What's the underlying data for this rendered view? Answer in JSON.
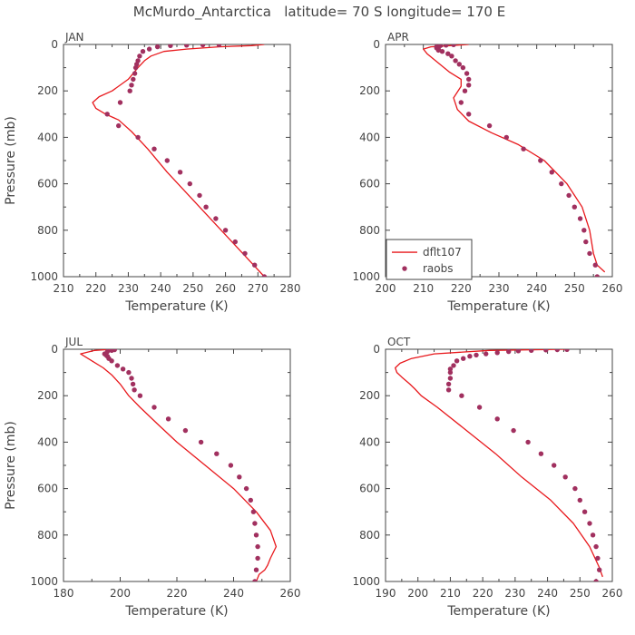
{
  "figure_title": "McMurdo_Antarctica   latitude= 70 S longitude= 170 E",
  "colors": {
    "model": "#e8181c",
    "obs": "#a1305f",
    "axis": "#444444"
  },
  "chart_data": [
    {
      "type": "line",
      "panel_label": "JAN",
      "xlabel": "Temperature (K)",
      "ylabel": "Pressure (mb)",
      "xlim": [
        210,
        280
      ],
      "xticks": [
        210,
        220,
        230,
        240,
        250,
        260,
        270,
        280
      ],
      "ylim": [
        1000,
        0
      ],
      "yticks": [
        0,
        200,
        400,
        600,
        800,
        1000
      ],
      "series": [
        {
          "name": "dflt107",
          "style": "line",
          "t": [
            272,
            262,
            252,
            242,
            236,
            231,
            227,
            223,
            220,
            219,
            221,
            225,
            230,
            233,
            235,
            237,
            241,
            248,
            258,
            268,
            272
          ],
          "p": [
            1000,
            850,
            700,
            550,
            450,
            375,
            325,
            300,
            275,
            250,
            225,
            200,
            150,
            100,
            70,
            50,
            30,
            20,
            10,
            5,
            0
          ]
        },
        {
          "name": "raobs",
          "style": "points",
          "t": [
            272,
            269,
            266,
            263,
            260,
            257,
            254,
            252,
            249,
            246,
            242,
            238,
            233,
            227,
            223.5,
            227.5,
            230.5,
            231,
            231.5,
            232,
            232.3,
            232.6,
            233,
            233.5,
            234.5,
            236.5,
            239,
            243,
            248,
            253,
            258
          ],
          "p": [
            1000,
            950,
            900,
            850,
            800,
            750,
            700,
            650,
            600,
            550,
            500,
            450,
            400,
            350,
            300,
            250,
            200,
            175,
            150,
            125,
            100,
            85,
            70,
            50,
            30,
            20,
            10,
            5,
            3,
            2,
            1
          ]
        }
      ]
    },
    {
      "type": "line",
      "panel_label": "APR",
      "xlabel": "Temperature (K)",
      "ylabel": "",
      "xlim": [
        200,
        260
      ],
      "xticks": [
        200,
        210,
        220,
        230,
        240,
        250,
        260
      ],
      "ylim": [
        1000,
        0
      ],
      "yticks": [
        0,
        200,
        400,
        600,
        800,
        1000
      ],
      "legend": {
        "position": "bottom-left",
        "entries": [
          "dflt107",
          "raobs"
        ]
      },
      "series": [
        {
          "name": "dflt107",
          "style": "line",
          "t": [
            258,
            256,
            255,
            254,
            252,
            248,
            242,
            235,
            228,
            222,
            219,
            218,
            220,
            220,
            217,
            214,
            211,
            210,
            212,
            217,
            222
          ],
          "p": [
            980,
            950,
            900,
            800,
            700,
            600,
            500,
            430,
            380,
            330,
            280,
            230,
            180,
            150,
            120,
            80,
            40,
            20,
            10,
            5,
            0
          ]
        },
        {
          "name": "raobs",
          "style": "points",
          "t": [
            256,
            255.5,
            254,
            253,
            252.5,
            251.5,
            250,
            248.5,
            246.5,
            244,
            241,
            236.5,
            232,
            227.5,
            222,
            220,
            221,
            222,
            222,
            221.5,
            220.5,
            219.5,
            218.5,
            217.5,
            216.5,
            215,
            214,
            214,
            213.5,
            213.5,
            214.5,
            216,
            218
          ],
          "p": [
            1000,
            950,
            900,
            850,
            800,
            750,
            700,
            650,
            600,
            550,
            500,
            450,
            400,
            350,
            300,
            250,
            200,
            175,
            150,
            125,
            100,
            85,
            70,
            50,
            40,
            30,
            25,
            20,
            15,
            10,
            5,
            3,
            1
          ]
        }
      ]
    },
    {
      "type": "line",
      "panel_label": "JUL",
      "xlabel": "Temperature (K)",
      "ylabel": "Pressure (mb)",
      "xlim": [
        180,
        260
      ],
      "xticks": [
        180,
        200,
        220,
        240,
        260
      ],
      "ylim": [
        1000,
        0
      ],
      "yticks": [
        0,
        200,
        400,
        600,
        800,
        1000
      ],
      "series": [
        {
          "name": "dflt107",
          "style": "line",
          "t": [
            248,
            249,
            251,
            252,
            253,
            255,
            253,
            248,
            240,
            230,
            220,
            213,
            207,
            203,
            200,
            197,
            194,
            190,
            186,
            191,
            197
          ],
          "p": [
            1000,
            970,
            950,
            930,
            900,
            850,
            780,
            700,
            600,
            500,
            400,
            320,
            250,
            200,
            150,
            110,
            80,
            50,
            20,
            5,
            0
          ]
        },
        {
          "name": "raobs",
          "style": "points",
          "t": [
            247.5,
            248,
            248.5,
            248.5,
            248,
            247.5,
            247,
            246,
            244.5,
            242,
            239,
            234,
            228.5,
            223,
            217,
            212,
            207,
            205,
            204.5,
            204,
            203,
            201,
            199,
            197,
            196,
            195.5,
            195,
            194.5,
            195.5,
            197,
            198
          ],
          "p": [
            1000,
            950,
            900,
            850,
            800,
            750,
            700,
            650,
            600,
            550,
            500,
            450,
            400,
            350,
            300,
            250,
            200,
            175,
            150,
            125,
            100,
            85,
            70,
            50,
            40,
            30,
            25,
            20,
            10,
            5,
            2
          ]
        }
      ]
    },
    {
      "type": "line",
      "panel_label": "OCT",
      "xlabel": "Temperature (K)",
      "ylabel": "",
      "xlim": [
        190,
        260
      ],
      "xticks": [
        190,
        200,
        210,
        220,
        230,
        240,
        250,
        260
      ],
      "ylim": [
        1000,
        0
      ],
      "yticks": [
        0,
        200,
        400,
        600,
        800,
        1000
      ],
      "series": [
        {
          "name": "dflt107",
          "style": "line",
          "t": [
            257,
            256.5,
            256,
            253,
            248,
            241,
            232,
            224,
            215,
            206,
            201,
            199,
            197.5,
            195,
            193.5,
            193,
            194.5,
            198,
            205,
            222,
            246
          ],
          "p": [
            980,
            960,
            940,
            850,
            750,
            650,
            550,
            450,
            350,
            250,
            200,
            170,
            150,
            120,
            100,
            80,
            60,
            40,
            20,
            5,
            0
          ]
        },
        {
          "name": "raobs",
          "style": "points",
          "t": [
            255,
            256,
            255.5,
            255,
            254,
            253,
            251.5,
            250,
            248.5,
            245.5,
            242,
            238,
            234,
            229.5,
            224.5,
            219,
            213.5,
            209.5,
            209.5,
            210,
            210,
            210,
            211,
            212,
            214,
            216,
            218,
            221,
            224.5,
            228,
            231,
            235,
            239.5,
            243,
            246
          ],
          "p": [
            1000,
            950,
            900,
            850,
            800,
            750,
            700,
            650,
            600,
            550,
            500,
            450,
            400,
            350,
            300,
            250,
            200,
            175,
            150,
            125,
            100,
            85,
            70,
            50,
            40,
            30,
            25,
            20,
            15,
            10,
            7,
            5,
            3,
            2,
            1
          ]
        }
      ]
    }
  ]
}
